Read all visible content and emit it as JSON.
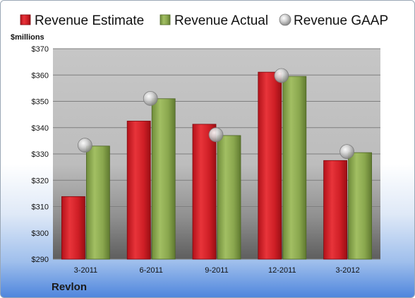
{
  "company": "Revlon",
  "chart_data": {
    "type": "bar",
    "ylabel": "$millions",
    "ylim": [
      290,
      370
    ],
    "yticks": [
      290,
      300,
      310,
      320,
      330,
      340,
      350,
      360,
      370
    ],
    "ytick_prefix": "$",
    "categories": [
      "3-2011",
      "6-2011",
      "9-2011",
      "12-2011",
      "3-2012"
    ],
    "legend_position": "top",
    "grid": true,
    "series": [
      {
        "name": "Revenue Estimate",
        "kind": "bar",
        "color": "#cc1d23",
        "values": [
          313.8,
          342.5,
          341.3,
          361.1,
          327.5
        ]
      },
      {
        "name": "Revenue Actual",
        "kind": "bar",
        "color": "#8caa4e",
        "values": [
          333.0,
          351.0,
          337.0,
          359.5,
          330.5
        ]
      },
      {
        "name": "Revenue GAAP",
        "kind": "marker",
        "color": "#c0c0c0",
        "values": [
          333.3,
          351.1,
          337.3,
          359.8,
          330.9
        ]
      }
    ]
  }
}
